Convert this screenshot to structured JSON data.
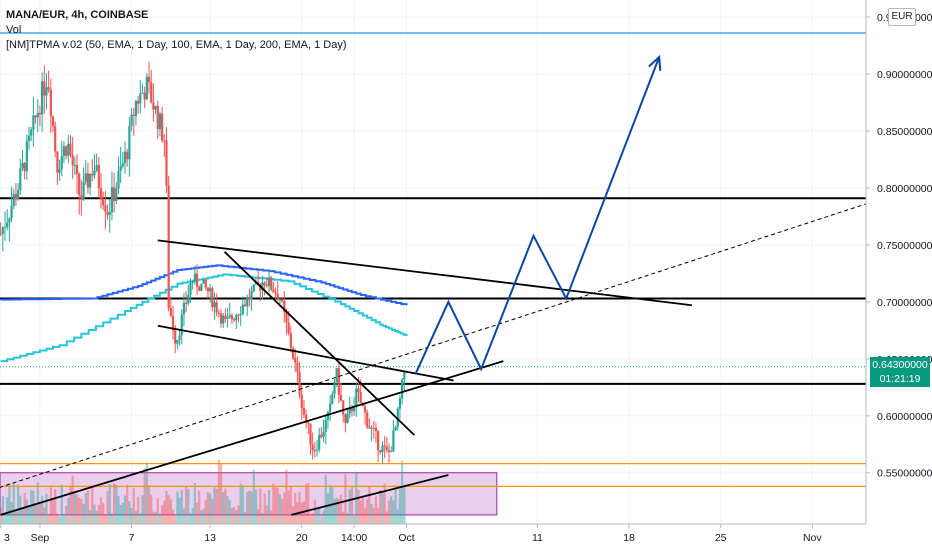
{
  "legend": {
    "symbol": "MANA/EUR, 4h, COINBASE",
    "volume": "Vol",
    "indicator": "[NM]TPMA v.02 (50, EMA, 1  Day, 100, EMA, 1  Day, 200, EMA, 1  Day)"
  },
  "currency": "EUR",
  "current_price": {
    "value": "0.64300000",
    "countdown": "01:21:19"
  },
  "colors": {
    "up": "#26a69a",
    "down": "#ef5350",
    "ma_blue": "#2962ff",
    "ma_teal": "#26c6da",
    "drawing": "#0d47a1",
    "level": "#000000",
    "orange": "#ff9800",
    "zone": "#e1bee7",
    "top_line": "#2196f3",
    "badge": "#089981"
  },
  "chart_data": {
    "type": "candlestick",
    "y_axis": {
      "ticks": [
        {
          "value": 0.95,
          "label": "0.95000000"
        },
        {
          "value": 0.9,
          "label": "0.90000000"
        },
        {
          "value": 0.85,
          "label": "0.85000000"
        },
        {
          "value": 0.8,
          "label": "0.80000000"
        },
        {
          "value": 0.75,
          "label": "0.75000000"
        },
        {
          "value": 0.7,
          "label": "0.70000000"
        },
        {
          "value": 0.65,
          "label": "0.65000000"
        },
        {
          "value": 0.6,
          "label": "0.60000000"
        },
        {
          "value": 0.55,
          "label": "0.55000000"
        }
      ],
      "range": [
        0.505,
        0.965
      ]
    },
    "x_axis": {
      "ticks": [
        {
          "day": 3,
          "label": "3"
        },
        {
          "day": 6,
          "label": "Sep"
        },
        {
          "day": 13,
          "label": "7"
        },
        {
          "day": 19,
          "label": "13"
        },
        {
          "day": 26,
          "label": "20"
        },
        {
          "day": 30,
          "label": "14:00"
        },
        {
          "day": 34,
          "label": "Oct"
        },
        {
          "day": 44,
          "label": "11"
        },
        {
          "day": 51,
          "label": "18"
        },
        {
          "day": 58,
          "label": "25"
        },
        {
          "day": 65,
          "label": "Nov"
        }
      ],
      "range": [
        2.95,
        69.1
      ]
    },
    "price_series": [
      [
        3,
        0.76
      ],
      [
        4.3,
        0.8
      ],
      [
        6.1,
        0.88
      ],
      [
        6.6,
        0.9
      ],
      [
        7.3,
        0.82
      ],
      [
        8.1,
        0.84
      ],
      [
        9.1,
        0.79
      ],
      [
        10.1,
        0.82
      ],
      [
        11.2,
        0.78
      ],
      [
        12.6,
        0.83
      ],
      [
        13.3,
        0.875
      ],
      [
        14.2,
        0.89
      ],
      [
        15.6,
        0.84
      ],
      [
        15.8,
        0.7
      ],
      [
        16.4,
        0.665
      ],
      [
        17.6,
        0.72
      ],
      [
        18.8,
        0.71
      ],
      [
        20.2,
        0.68
      ],
      [
        21.3,
        0.695
      ],
      [
        23.2,
        0.72
      ],
      [
        24.3,
        0.705
      ],
      [
        25.4,
        0.65
      ],
      [
        26.2,
        0.6
      ],
      [
        26.9,
        0.57
      ],
      [
        28.1,
        0.6
      ],
      [
        28.6,
        0.64
      ],
      [
        29.3,
        0.59
      ],
      [
        30.2,
        0.62
      ],
      [
        31.2,
        0.59
      ],
      [
        31.9,
        0.575
      ],
      [
        32.6,
        0.565
      ],
      [
        33.2,
        0.59
      ],
      [
        33.9,
        0.643
      ]
    ],
    "moving_averages": [
      {
        "color": "ma_blue",
        "points": [
          [
            3,
            0.702
          ],
          [
            10,
            0.703
          ],
          [
            13.5,
            0.714
          ],
          [
            16.5,
            0.728
          ],
          [
            19.5,
            0.732
          ],
          [
            23.5,
            0.727
          ],
          [
            27.5,
            0.717
          ],
          [
            30.5,
            0.706
          ],
          [
            34,
            0.697
          ]
        ]
      },
      {
        "color": "ma_teal",
        "points": [
          [
            3,
            0.648
          ],
          [
            7.5,
            0.662
          ],
          [
            12.5,
            0.692
          ],
          [
            16.5,
            0.716
          ],
          [
            20,
            0.724
          ],
          [
            25,
            0.718
          ],
          [
            29,
            0.698
          ],
          [
            32,
            0.68
          ],
          [
            34,
            0.67
          ]
        ]
      }
    ],
    "horizontal_levels": [
      {
        "price": 0.936,
        "color": "top_line"
      },
      {
        "price": 0.791,
        "color": "level"
      },
      {
        "price": 0.703,
        "color": "level"
      },
      {
        "price": 0.628,
        "color": "level"
      },
      {
        "price": 0.558,
        "color": "orange"
      },
      {
        "price": 0.538,
        "color": "orange"
      }
    ],
    "zone": {
      "from_day": 2.95,
      "to_day": 40.9,
      "price_top": 0.55,
      "price_bottom": 0.513
    },
    "trend_lines": [
      {
        "points": [
          [
            3,
            0.513
          ],
          [
            41.4,
            0.648
          ]
        ],
        "dash": false
      },
      {
        "points": [
          [
            2.9,
            0.537
          ],
          [
            69.1,
            0.786
          ]
        ],
        "dash": true
      },
      {
        "points": [
          [
            15,
            0.754
          ],
          [
            55.8,
            0.697
          ]
        ],
        "dash": false
      },
      {
        "points": [
          [
            15,
            0.679
          ],
          [
            37.6,
            0.631
          ]
        ],
        "dash": false
      },
      {
        "points": [
          [
            20.1,
            0.744
          ],
          [
            34.6,
            0.583
          ]
        ],
        "dash": false
      },
      {
        "points": [
          [
            25.2,
            0.513
          ],
          [
            37.2,
            0.548
          ]
        ],
        "dash": false
      }
    ],
    "projection_path": [
      [
        34.7,
        0.637
      ],
      [
        37.2,
        0.7
      ],
      [
        39.7,
        0.641
      ],
      [
        43.7,
        0.758
      ],
      [
        46.2,
        0.703
      ],
      [
        53.3,
        0.915
      ]
    ],
    "volume": {
      "max_bar_height": 0.055
    }
  }
}
